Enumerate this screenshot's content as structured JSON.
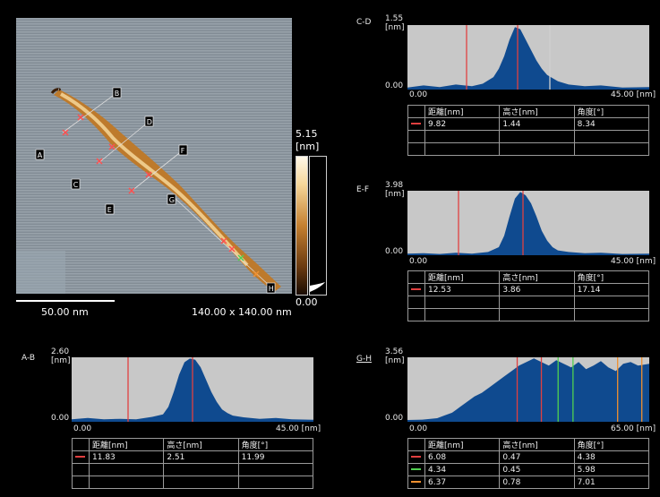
{
  "afm_image": {
    "scale_bar_label": "50.00 nm",
    "size_label": "140.00 x 140.00 nm",
    "colorbar_max": "5.15",
    "colorbar_unit": "[nm]",
    "colorbar_min": "0.00",
    "line_markers": [
      "A",
      "B",
      "C",
      "D",
      "E",
      "F",
      "G",
      "H"
    ],
    "colors": {
      "background": "#8e98a0",
      "molecule": "#c07a2c",
      "highlight": "#f6d79a"
    }
  },
  "table_headers": [
    "距離[nm]",
    "高さ[nm]",
    "角度[°]"
  ],
  "x_unit": "[nm]",
  "chart_data": [
    {
      "id": "CD",
      "type": "area",
      "title": "C-D",
      "ylabel": "[nm]",
      "xlim": [
        0,
        45
      ],
      "ylim": [
        0,
        1.55
      ],
      "x_tick_labels": [
        "0.00",
        "45.00"
      ],
      "y_tick_labels": [
        "1.55",
        "0.00"
      ],
      "profile_x": [
        0,
        3,
        6,
        9,
        12,
        14,
        16,
        17,
        18,
        19,
        20,
        21,
        22,
        23,
        24,
        25,
        26,
        28,
        30,
        33,
        36,
        40,
        45
      ],
      "profile_y": [
        0.05,
        0.1,
        0.06,
        0.12,
        0.08,
        0.14,
        0.3,
        0.5,
        0.8,
        1.2,
        1.5,
        1.45,
        1.2,
        0.95,
        0.7,
        0.5,
        0.35,
        0.2,
        0.12,
        0.08,
        0.1,
        0.05,
        0.06
      ],
      "cursor_lines": [
        {
          "x": 11,
          "color": "#e04040"
        },
        {
          "x": 20.5,
          "color": "#e04040"
        },
        {
          "x": 26.5,
          "color": "#d0d0d0"
        }
      ],
      "rows": [
        {
          "color": "#e04040",
          "distance": "9.82",
          "height": "1.44",
          "angle": "8.34"
        }
      ],
      "empty_rows": 2
    },
    {
      "id": "EF",
      "type": "area",
      "title": "E-F",
      "ylabel": "[nm]",
      "xlim": [
        0,
        45
      ],
      "ylim": [
        0,
        3.98
      ],
      "x_tick_labels": [
        "0.00",
        "45.00"
      ],
      "y_tick_labels": [
        "3.98",
        "0.00"
      ],
      "profile_x": [
        0,
        3,
        6,
        9,
        12,
        15,
        17,
        18,
        19,
        20,
        21,
        22,
        23,
        24,
        25,
        26,
        27,
        28,
        30,
        33,
        36,
        40,
        45
      ],
      "profile_y": [
        0.1,
        0.12,
        0.08,
        0.15,
        0.1,
        0.2,
        0.5,
        1.2,
        2.4,
        3.5,
        3.9,
        3.7,
        3.2,
        2.4,
        1.5,
        0.9,
        0.5,
        0.3,
        0.2,
        0.12,
        0.15,
        0.08,
        0.1
      ],
      "cursor_lines": [
        {
          "x": 9.5,
          "color": "#e04040"
        },
        {
          "x": 21.5,
          "color": "#e04040"
        }
      ],
      "rows": [
        {
          "color": "#e04040",
          "distance": "12.53",
          "height": "3.86",
          "angle": "17.14"
        }
      ],
      "empty_rows": 2
    },
    {
      "id": "AB",
      "type": "area",
      "title": "A-B",
      "ylabel": "[nm]",
      "xlim": [
        0,
        45
      ],
      "ylim": [
        0,
        2.6
      ],
      "x_tick_labels": [
        "0.00",
        "45.00"
      ],
      "y_tick_labels": [
        "2.60",
        "0.00"
      ],
      "profile_x": [
        0,
        3,
        6,
        9,
        12,
        15,
        17,
        18,
        19,
        20,
        21,
        22,
        23,
        24,
        25,
        26,
        27,
        28,
        29,
        30,
        32,
        35,
        38,
        41,
        45
      ],
      "profile_y": [
        0.1,
        0.15,
        0.1,
        0.12,
        0.1,
        0.2,
        0.3,
        0.6,
        1.2,
        1.9,
        2.4,
        2.55,
        2.5,
        2.2,
        1.7,
        1.2,
        0.8,
        0.5,
        0.35,
        0.25,
        0.18,
        0.12,
        0.15,
        0.1,
        0.08
      ],
      "cursor_lines": [
        {
          "x": 10.5,
          "color": "#e04040"
        },
        {
          "x": 22.5,
          "color": "#e04040"
        }
      ],
      "rows": [
        {
          "color": "#e04040",
          "distance": "11.83",
          "height": "2.51",
          "angle": "11.99"
        }
      ],
      "empty_rows": 2
    },
    {
      "id": "GH",
      "type": "area",
      "title": "G-H",
      "ylabel": "[nm]",
      "xlim": [
        0,
        65
      ],
      "ylim": [
        0,
        3.56
      ],
      "x_tick_labels": [
        "0.00",
        "65.00"
      ],
      "y_tick_labels": [
        "3.56",
        "0.00"
      ],
      "profile_x": [
        0,
        4,
        8,
        10,
        12,
        14,
        16,
        18,
        20,
        22,
        24,
        26,
        28,
        30,
        32,
        34,
        36,
        38,
        40,
        42,
        44,
        46,
        48,
        50,
        52,
        54,
        56,
        58,
        60,
        62,
        65
      ],
      "profile_y": [
        0.1,
        0.12,
        0.2,
        0.35,
        0.5,
        0.8,
        1.1,
        1.4,
        1.6,
        1.9,
        2.2,
        2.5,
        2.8,
        3.1,
        3.3,
        3.5,
        3.3,
        3.1,
        3.4,
        3.2,
        3.0,
        3.3,
        2.9,
        3.1,
        3.35,
        3.0,
        2.8,
        3.2,
        3.3,
        3.1,
        3.2
      ],
      "cursor_lines": [
        {
          "x": 29.5,
          "color": "#e04040"
        },
        {
          "x": 36,
          "color": "#e04040"
        },
        {
          "x": 40.5,
          "color": "#50d050"
        },
        {
          "x": 44.5,
          "color": "#50d050"
        },
        {
          "x": 56.5,
          "color": "#f09030"
        },
        {
          "x": 63,
          "color": "#f09030"
        }
      ],
      "rows": [
        {
          "color": "#e04040",
          "distance": "6.08",
          "height": "0.47",
          "angle": "4.38"
        },
        {
          "color": "#50d050",
          "distance": "4.34",
          "height": "0.45",
          "angle": "5.98"
        },
        {
          "color": "#f09030",
          "distance": "6.37",
          "height": "0.78",
          "angle": "7.01"
        }
      ],
      "empty_rows": 0
    }
  ]
}
